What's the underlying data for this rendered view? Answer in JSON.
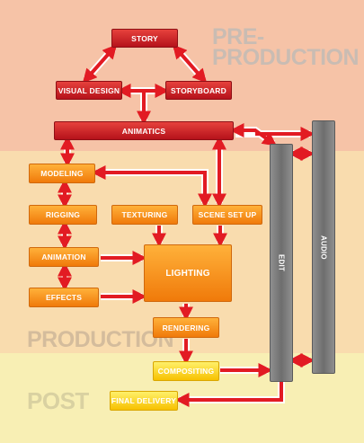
{
  "stage_labels": {
    "pre_production": "PRE-\nPRODUCTION",
    "production": "PRODUCTION",
    "post": "POST"
  },
  "nodes": {
    "story": "STORY",
    "visual_design": "VISUAL DESIGN",
    "storyboard": "STORYBOARD",
    "animatics": "ANIMATICS",
    "modeling": "MODELING",
    "rigging": "RIGGING",
    "texturing": "TEXTURING",
    "scene_set_up": "SCENE SET UP",
    "animation": "ANIMATION",
    "lighting": "LIGHTING",
    "effects": "EFFECTS",
    "rendering": "RENDERING",
    "compositing": "COMPOSITING",
    "final_delivery": "FINAL DELIVERY",
    "edit": "EDIT",
    "audio": "AUDIO"
  },
  "colors": {
    "pre_production_band": "#f6c3a7",
    "production_band": "#f9dcae",
    "post_band": "#f8efb4",
    "arrow_red": "#e21b23",
    "box_red": "#cc1f25",
    "box_orange": "#f28b1a",
    "box_yellow": "#f9d21c",
    "box_grey": "#7d7d7d"
  }
}
